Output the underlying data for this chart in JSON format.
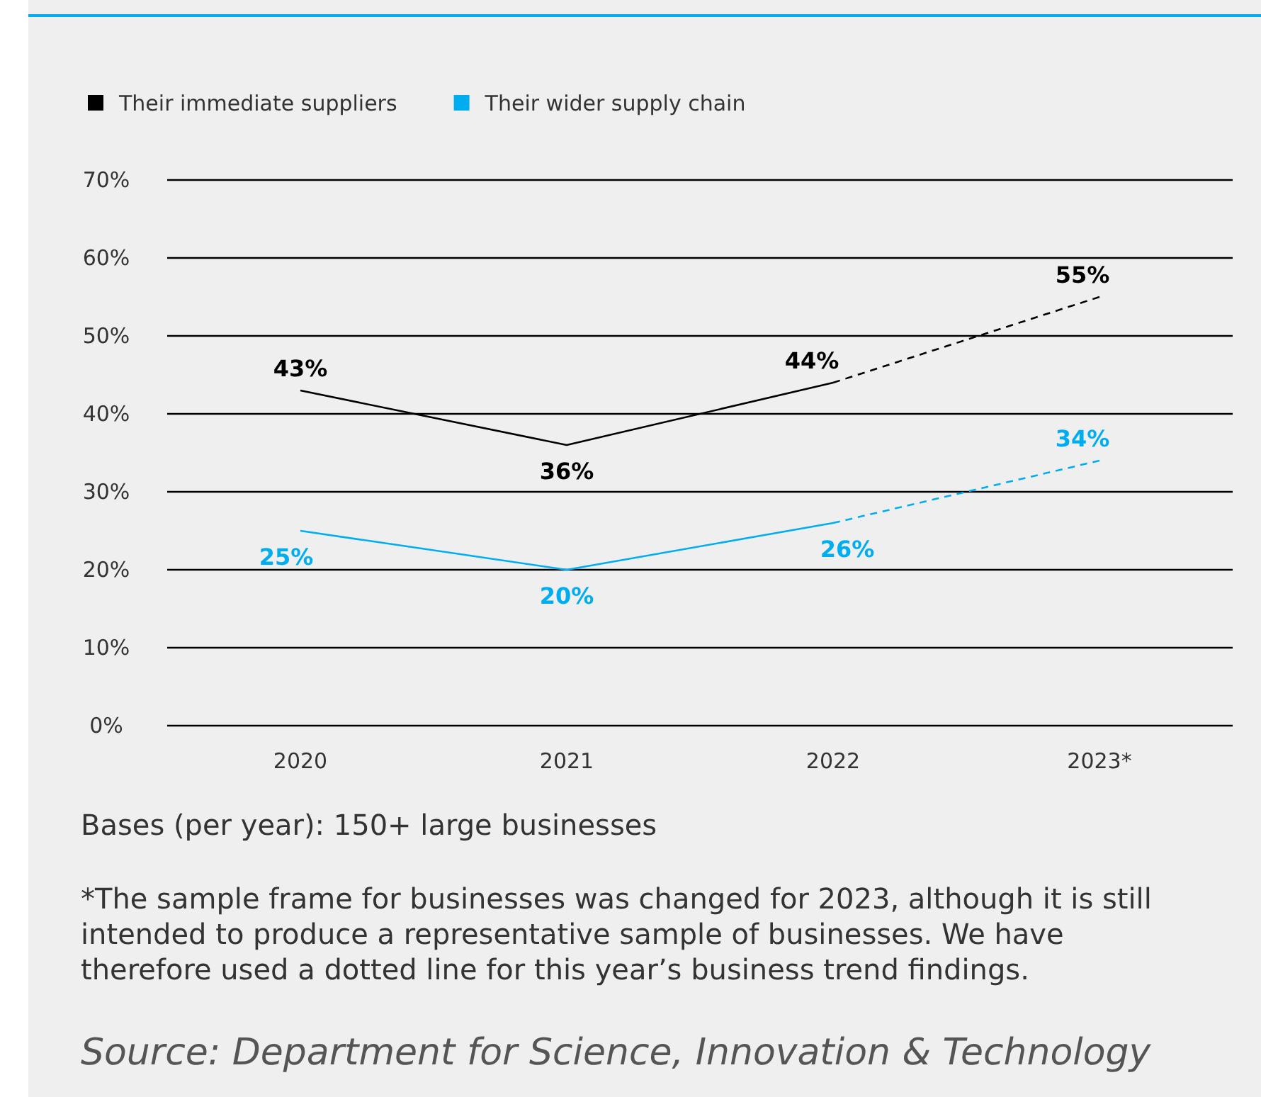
{
  "chart_data": {
    "type": "line",
    "categories": [
      "2020",
      "2021",
      "2022",
      "2023*"
    ],
    "series": [
      {
        "name": "Their immediate suppliers",
        "color": "#000000",
        "values": [
          43,
          36,
          44,
          null
        ],
        "value_labels": [
          "43%",
          "36%",
          "44%",
          null
        ]
      },
      {
        "color": "#000000",
        "values": [
          null,
          null,
          44,
          55
        ],
        "line_style": "dashed",
        "value_labels": [
          null,
          null,
          null,
          "55%"
        ]
      },
      {
        "name": "Their wider supply chain",
        "color": "#00aeef",
        "values": [
          25,
          20,
          26,
          null
        ],
        "value_labels": [
          "25%",
          "20%",
          "26%",
          null
        ]
      },
      {
        "color": "#00aeef",
        "values": [
          null,
          null,
          26,
          34
        ],
        "line_style": "dashed",
        "value_labels": [
          null,
          null,
          null,
          "34%"
        ]
      }
    ],
    "ylim": [
      0,
      70
    ],
    "yticks": [
      {
        "value": 0,
        "label": "0%"
      },
      {
        "value": 10,
        "label": "10%"
      },
      {
        "value": 20,
        "label": "20%"
      },
      {
        "value": 30,
        "label": "30%"
      },
      {
        "value": 40,
        "label": "40%"
      },
      {
        "value": 50,
        "label": "50%"
      },
      {
        "value": 60,
        "label": "60%"
      },
      {
        "value": 70,
        "label": "70%"
      }
    ],
    "grid": "y",
    "legend": "top left",
    "marker": "none",
    "line_style": "solid",
    "annotations": [
      "Bases (per year): 150+ large businesses",
      "*The sample frame for businesses was changed for 2023, although it is still intended to produce a representative sample of businesses. We have therefore used a dotted line for this year’s business trend findings.",
      "Source: Department for Science, Innovation & Technology"
    ]
  }
}
